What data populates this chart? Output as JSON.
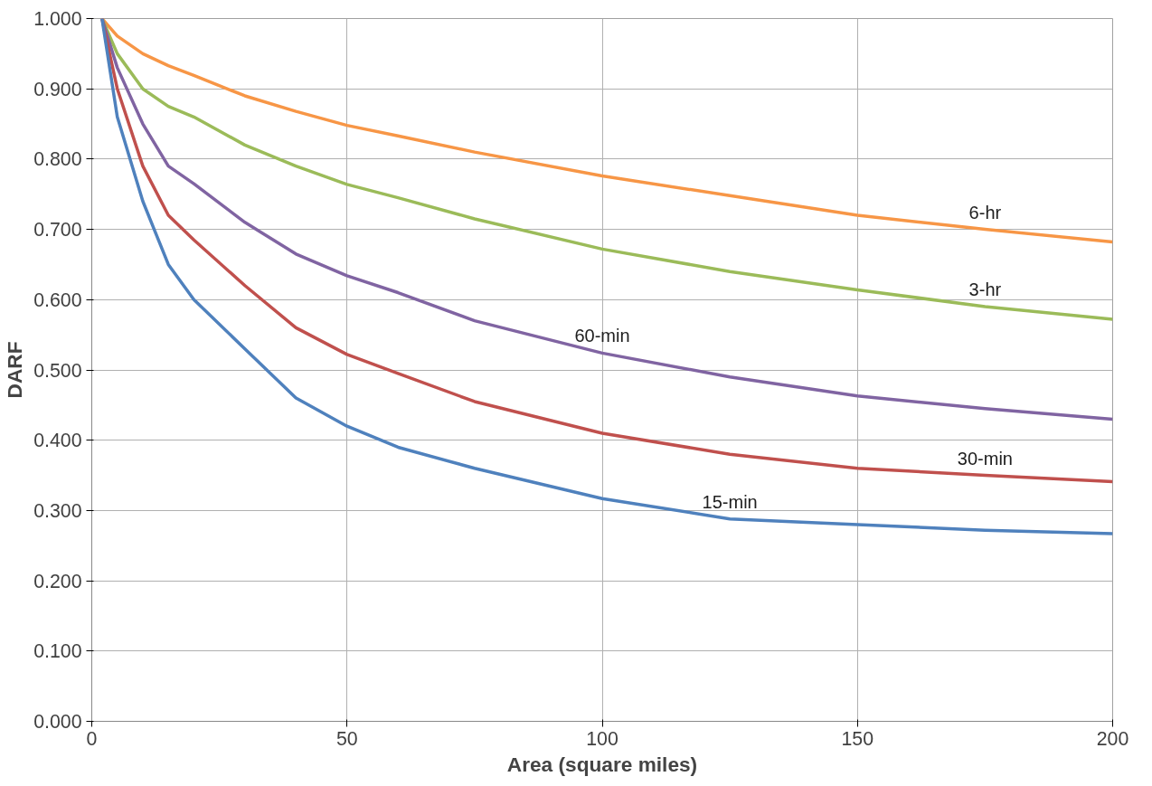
{
  "chart_data": {
    "type": "line",
    "xlabel": "Area (square miles)",
    "ylabel": "DARF",
    "xlim": [
      0,
      200
    ],
    "ylim": [
      0,
      1
    ],
    "xticks": [
      0,
      50,
      100,
      150,
      200
    ],
    "yticks": [
      {
        "value": 0,
        "label": "0.000"
      },
      {
        "value": 0.1,
        "label": "0.100"
      },
      {
        "value": 0.2,
        "label": "0.200"
      },
      {
        "value": 0.3,
        "label": "0.300"
      },
      {
        "value": 0.4,
        "label": "0.400"
      },
      {
        "value": 0.5,
        "label": "0.500"
      },
      {
        "value": 0.6,
        "label": "0.600"
      },
      {
        "value": 0.7,
        "label": "0.700"
      },
      {
        "value": 0.8,
        "label": "0.800"
      },
      {
        "value": 0.9,
        "label": "0.900"
      },
      {
        "value": 1,
        "label": "1.000"
      }
    ],
    "grid": true,
    "marker": "none",
    "line_style": "solid",
    "x": [
      2,
      5,
      10,
      15,
      20,
      30,
      40,
      50,
      60,
      75,
      100,
      125,
      150,
      175,
      200
    ],
    "series": [
      {
        "name": "6-hr",
        "color": "#f79646",
        "values": [
          1.0,
          0.975,
          0.95,
          0.933,
          0.919,
          0.89,
          0.868,
          0.848,
          0.833,
          0.81,
          0.776,
          0.748,
          0.72,
          0.7,
          0.682
        ]
      },
      {
        "name": "3-hr",
        "color": "#9bbb59",
        "values": [
          1.0,
          0.95,
          0.9,
          0.875,
          0.86,
          0.82,
          0.79,
          0.764,
          0.745,
          0.715,
          0.672,
          0.64,
          0.614,
          0.59,
          0.572
        ]
      },
      {
        "name": "60-min",
        "color": "#8064a2",
        "values": [
          1.0,
          0.93,
          0.85,
          0.79,
          0.765,
          0.71,
          0.665,
          0.634,
          0.61,
          0.57,
          0.524,
          0.49,
          0.463,
          0.445,
          0.43
        ]
      },
      {
        "name": "30-min",
        "color": "#c0504d",
        "values": [
          1.0,
          0.9,
          0.79,
          0.72,
          0.685,
          0.62,
          0.56,
          0.522,
          0.495,
          0.455,
          0.41,
          0.38,
          0.36,
          0.35,
          0.341
        ]
      },
      {
        "name": "15-min",
        "color": "#4f81bd",
        "values": [
          1.0,
          0.86,
          0.74,
          0.65,
          0.6,
          0.53,
          0.46,
          0.42,
          0.39,
          0.36,
          0.317,
          0.288,
          0.28,
          0.272,
          0.267
        ]
      }
    ]
  }
}
